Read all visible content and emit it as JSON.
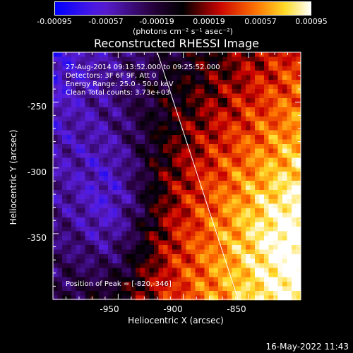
{
  "chart_data": {
    "type": "heatmap",
    "title": "Reconstructed RHESSI Image",
    "colorbar": {
      "ticks": [
        "-0.00095",
        "-0.00057",
        "-0.00019",
        "0.00019",
        "0.00057",
        "0.00095"
      ],
      "range": [
        -0.00095,
        0.00095
      ],
      "unit_label": "(photons cm⁻² s⁻¹ asec⁻²)"
    },
    "info_lines": [
      "27-Aug-2014 09:13:52.000 to 09:25:52.000",
      "Detectors: 3F 6F 9F, Att 0",
      "Energy Range: 25.0 - 50.0 keV",
      "Clean     Total counts: 3.73e+03"
    ],
    "peak_label": "Position of Peak = [-820,-346]",
    "peak_position": [
      -820,
      -346
    ],
    "xlabel": "Heliocentric X (arcsec)",
    "ylabel": "Heliocentric Y (arcsec)",
    "xlim": [
      -1000,
      -810
    ],
    "ylim": [
      -400,
      -212
    ],
    "xticks": [
      "-950",
      "-900",
      "-850"
    ],
    "xtick_values": [
      -950,
      -900,
      -850
    ],
    "yticks": [
      "-250",
      "-300",
      "-350"
    ],
    "ytick_values": [
      -250,
      -300,
      -350
    ],
    "limb_line": [
      [
        -920,
        -212
      ],
      [
        -858,
        -400
      ]
    ]
  },
  "datestamp": "16-May-2022 11:43"
}
